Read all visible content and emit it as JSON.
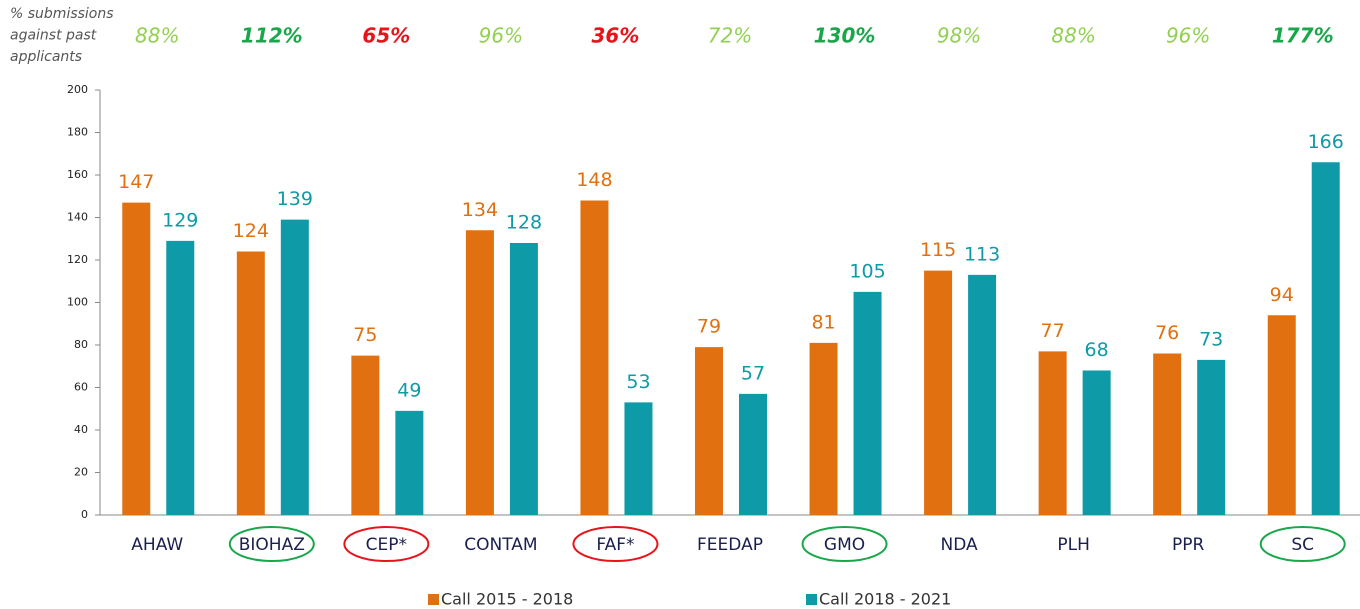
{
  "chart_data": {
    "type": "bar",
    "annotation_header": [
      "% submissions",
      "against past",
      "applicants"
    ],
    "annotations": [
      {
        "label": "88%",
        "color": "#92d050",
        "bold": false
      },
      {
        "label": "112%",
        "color": "#1aa64a",
        "bold": true
      },
      {
        "label": "65%",
        "color": "#e8141c",
        "bold": true
      },
      {
        "label": "96%",
        "color": "#92d050",
        "bold": false
      },
      {
        "label": "36%",
        "color": "#e8141c",
        "bold": true
      },
      {
        "label": "72%",
        "color": "#92d050",
        "bold": false
      },
      {
        "label": "130%",
        "color": "#1aa64a",
        "bold": true
      },
      {
        "label": "98%",
        "color": "#92d050",
        "bold": false
      },
      {
        "label": "88%",
        "color": "#92d050",
        "bold": false
      },
      {
        "label": "96%",
        "color": "#92d050",
        "bold": false
      },
      {
        "label": "177%",
        "color": "#1aa64a",
        "bold": true
      }
    ],
    "categories": [
      "AHAW",
      "BIOHAZ",
      "CEP*",
      "CONTAM",
      "FAF*",
      "FEEDAP",
      "GMO",
      "NDA",
      "PLH",
      "PPR",
      "SC"
    ],
    "category_circles": [
      null,
      "#1aa64a",
      "#e8141c",
      null,
      "#e8141c",
      null,
      "#1aa64a",
      null,
      null,
      null,
      "#1aa64a"
    ],
    "series": [
      {
        "name": "Call 2015 - 2018",
        "color": "#e07010",
        "values": [
          147,
          124,
          75,
          134,
          148,
          79,
          81,
          115,
          77,
          76,
          94
        ]
      },
      {
        "name": "Call 2018 - 2021",
        "color": "#0e9aa7",
        "values": [
          129,
          139,
          49,
          128,
          53,
          57,
          105,
          113,
          68,
          73,
          166
        ]
      }
    ],
    "ylim": [
      0,
      200
    ],
    "yticks": [
      0,
      20,
      40,
      60,
      80,
      100,
      120,
      140,
      160,
      180,
      200
    ],
    "grid": false,
    "legend": "bottom"
  }
}
